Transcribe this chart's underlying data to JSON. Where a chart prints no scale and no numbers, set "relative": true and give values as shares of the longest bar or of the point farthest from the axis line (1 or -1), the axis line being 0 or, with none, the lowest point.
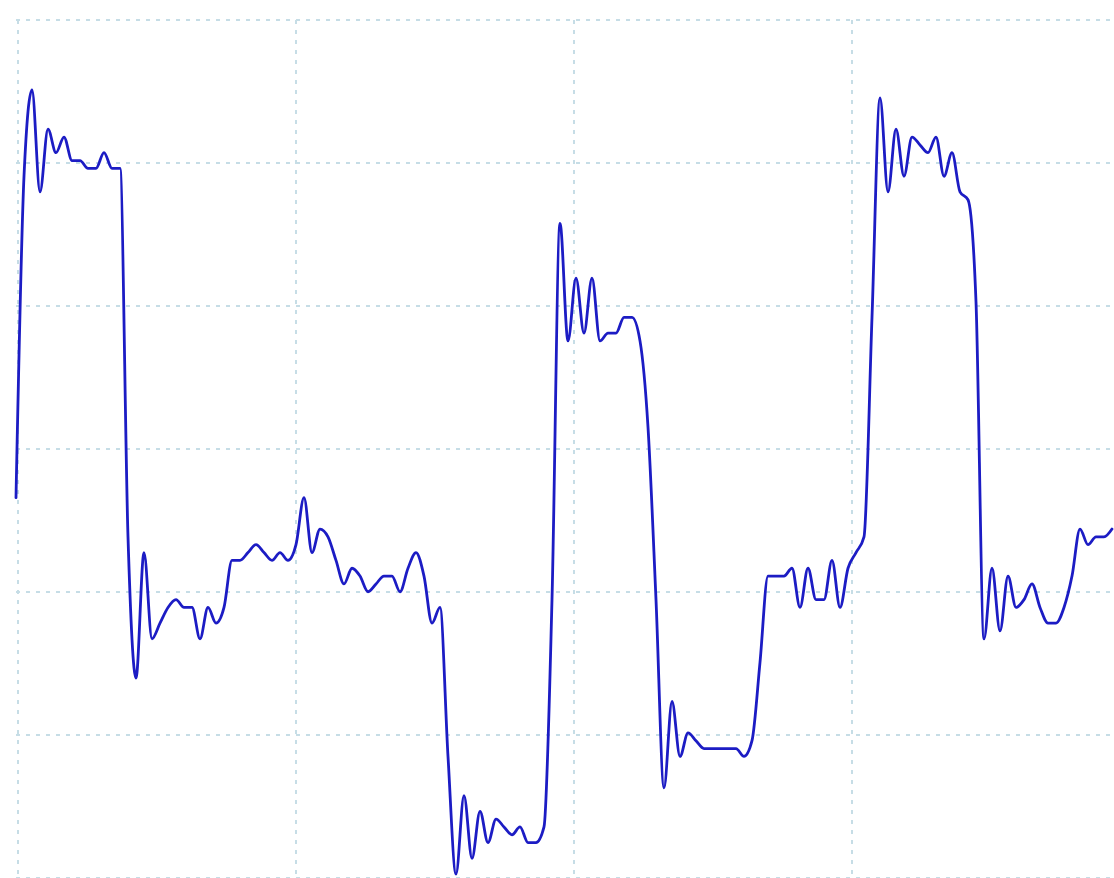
{
  "chart_data": {
    "type": "line",
    "relative": true,
    "grid": true,
    "line_style": "solid",
    "categories": [
      null,
      null,
      null,
      null,
      null,
      null,
      null,
      null,
      null,
      null,
      null,
      null,
      null,
      null,
      null,
      null,
      null,
      null,
      null,
      null,
      null,
      null,
      null,
      null,
      null,
      null,
      null,
      null,
      null,
      null,
      null,
      null,
      null,
      null,
      null,
      null,
      null,
      null,
      null,
      null,
      null,
      null,
      null,
      null,
      null,
      null,
      null,
      null,
      null,
      null,
      null,
      null,
      null,
      null,
      null,
      null,
      null,
      null,
      null,
      null,
      null,
      null,
      null,
      null,
      null,
      null,
      null,
      null,
      null,
      null,
      null,
      null,
      null,
      null,
      null,
      null,
      null,
      null,
      null,
      null,
      null,
      null,
      null,
      null,
      null,
      null,
      null,
      null,
      null,
      null,
      null,
      null,
      null,
      null,
      null,
      null,
      null,
      null,
      null,
      null,
      null,
      null,
      null,
      null,
      null,
      null,
      null,
      null,
      null,
      null,
      null,
      null,
      null,
      null,
      null,
      null,
      null,
      null,
      null,
      null,
      null,
      null,
      null,
      null,
      null,
      null,
      null,
      null,
      null,
      null,
      null,
      null,
      null,
      null,
      null,
      null,
      null,
      null
    ],
    "series": [
      {
        "color": "#1c1cc4",
        "values": [
          0.48,
          0.89,
          1.0,
          0.87,
          0.95,
          0.92,
          0.94,
          0.91,
          0.91,
          0.9,
          0.9,
          0.92,
          0.9,
          0.9,
          0.43,
          0.25,
          0.41,
          0.3,
          0.32,
          0.34,
          0.35,
          0.34,
          0.34,
          0.3,
          0.34,
          0.32,
          0.34,
          0.4,
          0.4,
          0.41,
          0.42,
          0.41,
          0.4,
          0.41,
          0.4,
          0.42,
          0.48,
          0.41,
          0.44,
          0.43,
          0.4,
          0.37,
          0.39,
          0.38,
          0.36,
          0.37,
          0.38,
          0.38,
          0.36,
          0.39,
          0.41,
          0.38,
          0.32,
          0.34,
          0.15,
          0,
          0.1,
          0.02,
          0.08,
          0.04,
          0.07,
          0.06,
          0.05,
          0.06,
          0.04,
          0.04,
          0.06,
          0.35,
          0.83,
          0.68,
          0.76,
          0.69,
          0.76,
          0.68,
          0.69,
          0.69,
          0.71,
          0.71,
          0.68,
          0.57,
          0.35,
          0.11,
          0.22,
          0.15,
          0.18,
          0.17,
          0.16,
          0.16,
          0.16,
          0.16,
          0.16,
          0.15,
          0.17,
          0.27,
          0.38,
          0.38,
          0.38,
          0.39,
          0.34,
          0.39,
          0.35,
          0.35,
          0.4,
          0.34,
          0.39,
          0.41,
          0.43,
          0.71,
          0.99,
          0.87,
          0.95,
          0.89,
          0.94,
          0.93,
          0.92,
          0.94,
          0.89,
          0.92,
          0.87,
          0.86,
          0.73,
          0.3,
          0.39,
          0.31,
          0.38,
          0.34,
          0.35,
          0.37,
          0.34,
          0.32,
          0.32,
          0.34,
          0.38,
          0.44,
          0.42,
          0.43,
          0.43,
          0.44
        ]
      }
    ]
  }
}
